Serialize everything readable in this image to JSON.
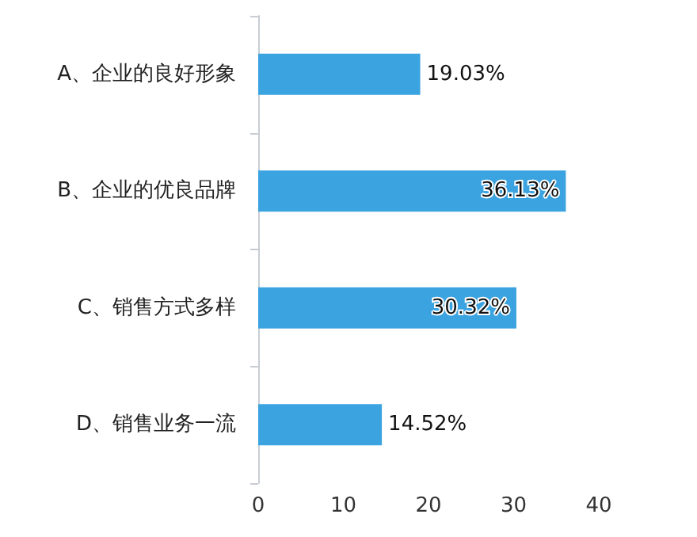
{
  "chart_data": {
    "type": "bar",
    "orientation": "horizontal",
    "categories": [
      "A、企业的良好形象",
      "B、企业的优良品牌",
      "C、销售方式多样",
      "D、销售业务一流"
    ],
    "values": [
      19.03,
      36.13,
      30.32,
      14.52
    ],
    "color": "#3aa3e0",
    "value_labels": [
      "19.03%",
      "36.13%",
      "30.32%",
      "14.52%"
    ],
    "xlim": [
      0,
      40
    ],
    "xticks": [
      0,
      10,
      20,
      30,
      40
    ],
    "grid": false
  }
}
